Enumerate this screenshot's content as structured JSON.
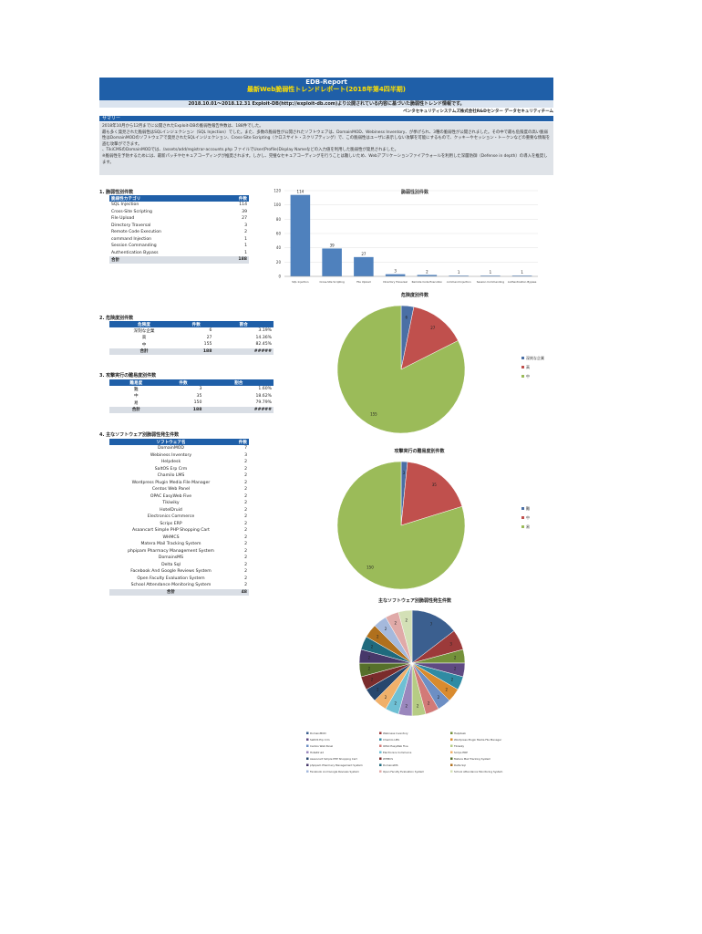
{
  "header": {
    "title": "EDB-Report",
    "subtitle": "最新Web脆弱性トレンドレポート(2018年第4四半期)",
    "period": "2018.10.01～2018.12.31 Exploit-DB(http://exploit-db.com)より公開されている内容に基づいた脆弱性トレンド情報です。",
    "org": "ペンタセキュリティシステムズ株式会社R&Dセンター データセキュリティチーム"
  },
  "summary": {
    "label": "サマリー",
    "lines": [
      "2018年10月から12月までに公開されたExploit-DBの脆弱性報告件数は、188件でした。",
      "最も多く発見された脆弱性はSQLインジェクション（SQL Injection）でした。また、多数の脆弱性が公開されたソフトウェアは、DomainMOD、Webiness Inventory、が挙げられ、3種の脆弱性が公開されました。その中で最も危険度の高い脆弱性はDomainMODのソフトウェアで発見されたSQLインジェクション、Cross-Site Scripting（クロスサイト・スクリプティング）で、この脆弱性はユーザに表示しない攻撃を可能にするもので、クッキーやセッション・トークンなどの重要な情報を盗む攻撃ができます。",
      "、TikiCMSのDomainMODでは、/assets/add/registrar-accounts.php ファイルでUser(Profile)Display Nameなどの入力値を利用した脆弱性が発見されました。",
      "※脆弱性を予防するためには、最新パッチやセキュアコーディングが推奨されます。しかし、完璧なセキュアコーディングを行うことは難しいため、Webアプリケーションファイアウォールを利用した深層防御（Defense in depth）の導入を推奨します。"
    ]
  },
  "section1": {
    "title": "1. 脆弱性別件数",
    "col1": "脆弱性カテゴリ",
    "col2": "件数",
    "rows": [
      {
        "name": "SQL Injection",
        "count": "114"
      },
      {
        "name": "Cross-Site Scripting",
        "count": "39"
      },
      {
        "name": "File Upload",
        "count": "27"
      },
      {
        "name": "Directory Traversal",
        "count": "3"
      },
      {
        "name": "Remote Code Execution",
        "count": "2"
      },
      {
        "name": "command Injection",
        "count": "1"
      },
      {
        "name": "Session Commanding",
        "count": "1"
      },
      {
        "name": "Authentication Bypass",
        "count": "1"
      }
    ],
    "total_label": "合計",
    "total": "188"
  },
  "section2": {
    "title": "2. 危険度別件数",
    "cols": [
      "危険度",
      "件数",
      "割合"
    ],
    "rows": [
      {
        "name": "深刻な企業",
        "count": "6",
        "pct": "3.19%"
      },
      {
        "name": "高",
        "count": "27",
        "pct": "14.36%"
      },
      {
        "name": "中",
        "count": "155",
        "pct": "82.45%"
      }
    ],
    "total_label": "合計",
    "total": "188",
    "total_pct": "#####"
  },
  "section3": {
    "title": "3. 攻撃実行の難易度別件数",
    "cols": [
      "難易度",
      "件数",
      "割合"
    ],
    "rows": [
      {
        "name": "難",
        "count": "3",
        "pct": "1.60%"
      },
      {
        "name": "中",
        "count": "35",
        "pct": "18.62%"
      },
      {
        "name": "易",
        "count": "150",
        "pct": "79.79%"
      }
    ],
    "total_label": "合計",
    "total": "188",
    "total_pct": "#####"
  },
  "section4": {
    "title": "4. 主なソフトウェア別脆弱性発生件数",
    "col1": "ソフトウェア名",
    "col2": "件数",
    "rows": [
      {
        "name": "DomainMOD",
        "count": "7"
      },
      {
        "name": "Webiness Inventory",
        "count": "3"
      },
      {
        "name": "Helpdesk",
        "count": "2"
      },
      {
        "name": "SaltOS Erp Crm",
        "count": "2"
      },
      {
        "name": "Chamilo LMS",
        "count": "2"
      },
      {
        "name": "Wordpress Plugin Media File Manager",
        "count": "2"
      },
      {
        "name": "Centos Web Panel",
        "count": "2"
      },
      {
        "name": "OPAC EasyWeb Five",
        "count": "2"
      },
      {
        "name": "Tikiwiky",
        "count": "2"
      },
      {
        "name": "HotelDruid",
        "count": "2"
      },
      {
        "name": "Electronics Commerce",
        "count": "2"
      },
      {
        "name": "Scrips ERP",
        "count": "2"
      },
      {
        "name": "Asaancart Simple PHP Shopping Cart",
        "count": "2"
      },
      {
        "name": "WHMCS",
        "count": "2"
      },
      {
        "name": "Matera Mail Tracking System",
        "count": "2"
      },
      {
        "name": "phpipam Pharmacy Management System",
        "count": "2"
      },
      {
        "name": "DomainsMS",
        "count": "2"
      },
      {
        "name": "Delta Sql",
        "count": "2"
      },
      {
        "name": "Facebook And Google Reviews System",
        "count": "2"
      },
      {
        "name": "Open Faculty Evaluation System",
        "count": "2"
      },
      {
        "name": "School Attendance Monitoring System",
        "count": "2"
      }
    ],
    "total_label": "合計",
    "total": "48"
  },
  "chart_data": [
    {
      "type": "bar",
      "title": "脆弱性別件数",
      "categories": [
        "SQL Injection",
        "Cross-Site Scripting",
        "File Upload",
        "Directory Traversal",
        "Remote Code Execution",
        "command Injection",
        "Session Commanding",
        "Authentication Bypass"
      ],
      "values": [
        114,
        39,
        27,
        3,
        2,
        1,
        1,
        1
      ],
      "ylim": [
        0,
        120
      ],
      "yticks": [
        "0",
        "20",
        "40",
        "60",
        "80",
        "100",
        "120"
      ]
    },
    {
      "type": "pie",
      "title": "危険度別件数",
      "labels": [
        "深刻な企業",
        "高",
        "中"
      ],
      "values": [
        6,
        27,
        155
      ],
      "colors": [
        "#4a6fa5",
        "#c0504d",
        "#9bbb59"
      ]
    },
    {
      "type": "pie",
      "title": "攻撃実行の難易度別件数",
      "labels": [
        "難",
        "中",
        "易"
      ],
      "values": [
        3,
        35,
        150
      ],
      "colors": [
        "#4a6fa5",
        "#c0504d",
        "#9bbb59"
      ]
    },
    {
      "type": "pie",
      "title": "主なソフトウェア別脆弱性発生件数",
      "labels": [
        "DomainMOD",
        "Webiness Inventory",
        "Helpdesk",
        "SaltOS Erp Crm",
        "Chamilo LMS",
        "Wordpress Plugin Media File Manager",
        "Centos Web Panel",
        "OPAC EasyWeb Five",
        "Tikiwiky",
        "HotelDruid",
        "Electronics Commerce",
        "Scrips ERP",
        "Asaancart Simple PHP Shopping Cart",
        "WHMCS",
        "Matera Mail Tracking System",
        "phpipam Pharmacy Management System",
        "DomainsMS",
        "Delta Sql",
        "Facebook And Google Reviews System",
        "Open Faculty Evaluation System",
        "School Attendance Monitoring System"
      ],
      "values": [
        7,
        3,
        2,
        2,
        2,
        2,
        2,
        2,
        2,
        2,
        2,
        2,
        2,
        2,
        2,
        2,
        2,
        2,
        2,
        2,
        2
      ],
      "colors": [
        "#3b5f8f",
        "#9c3a3a",
        "#74913a",
        "#5f4a82",
        "#2f8ba3",
        "#d98b2e",
        "#6d8fc4",
        "#d27a78",
        "#b6cc84",
        "#9a87bd",
        "#6fc0d4",
        "#f0b06a",
        "#27476e",
        "#7a2c2c",
        "#56702b",
        "#47386a",
        "#1f6a7d",
        "#b0701d",
        "#a5b9dc",
        "#e0aaa8",
        "#d3e0b6"
      ]
    }
  ]
}
